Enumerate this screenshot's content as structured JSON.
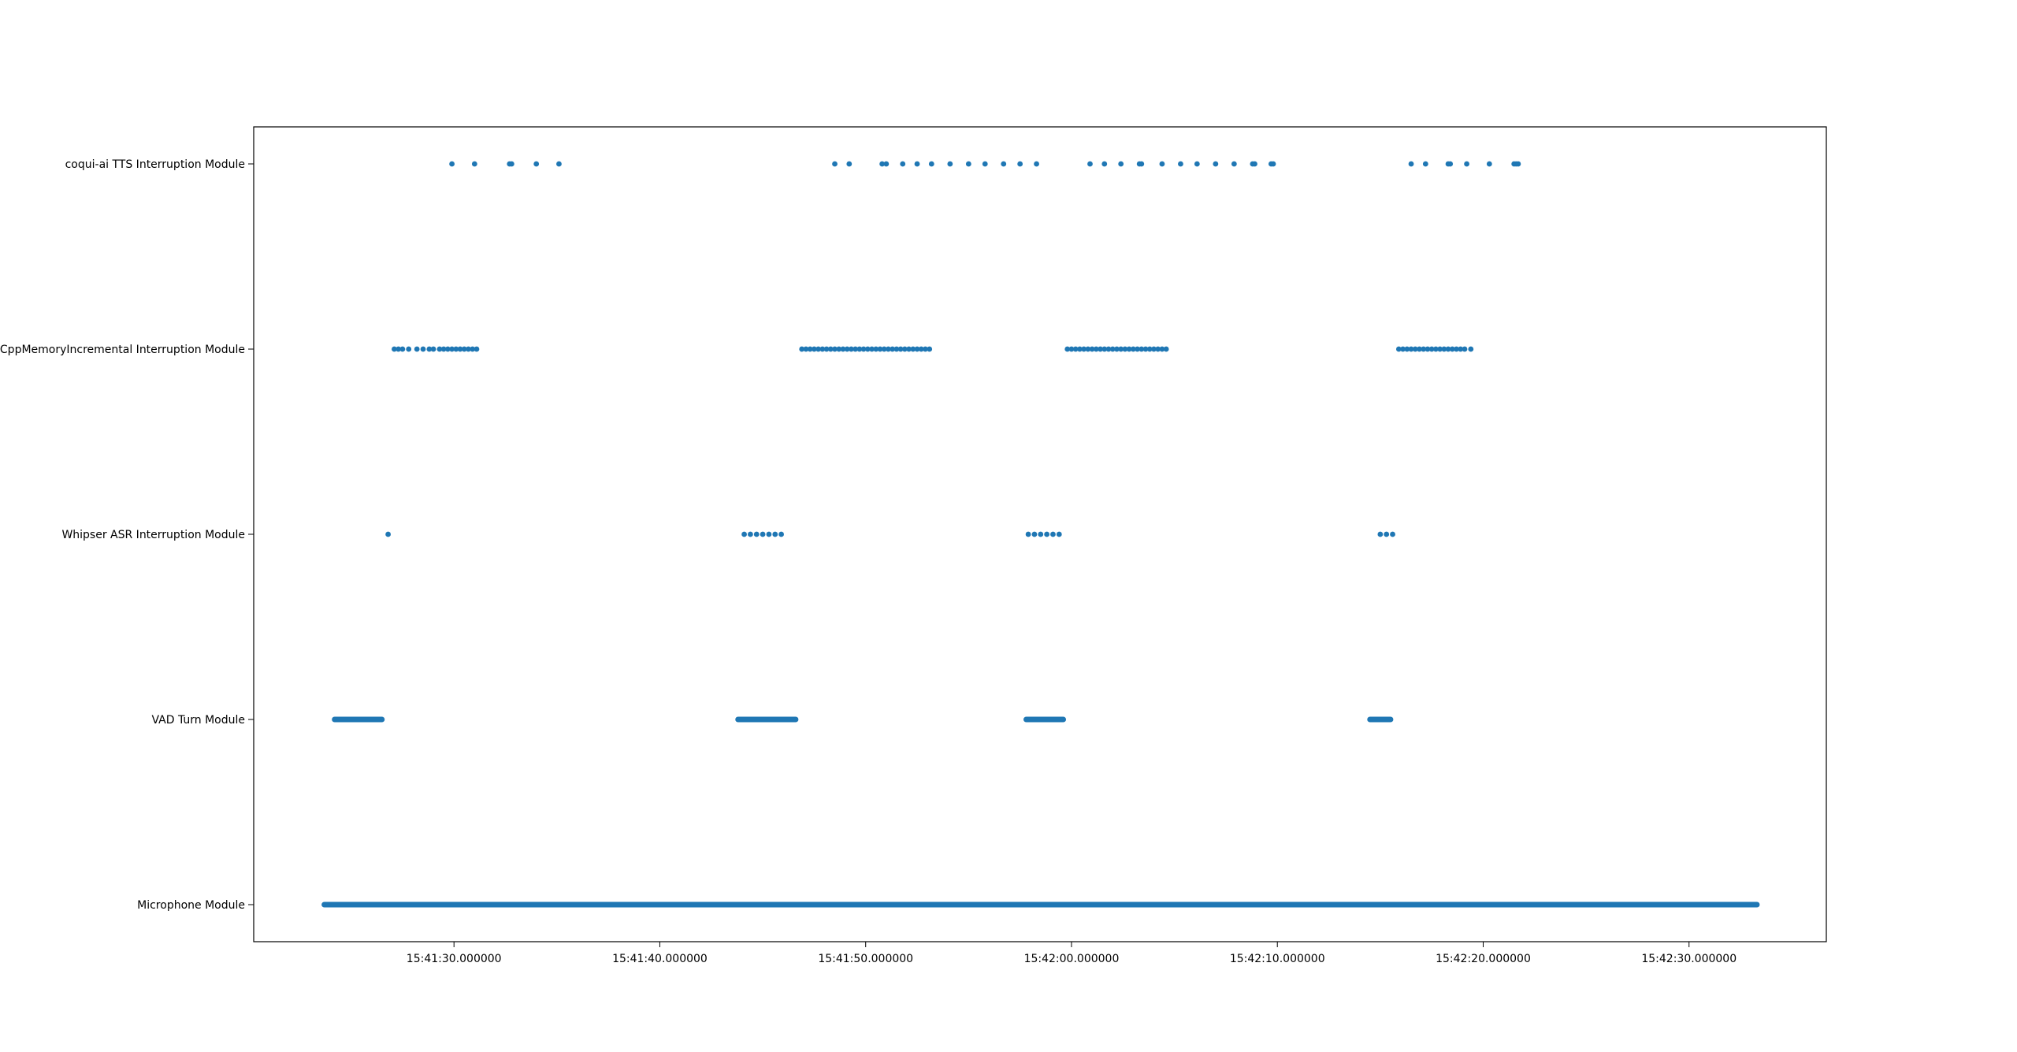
{
  "chart_data": {
    "type": "scatter",
    "title": "",
    "xlabel": "",
    "ylabel": "",
    "grid": false,
    "marker_color": "#1f77b4",
    "categories": [
      "Microphone Module",
      "VAD Turn Module",
      "Whipser ASR Interruption Module",
      "CppMemoryIncremental Interruption Module",
      "coqui-ai TTS Interruption Module"
    ],
    "x_ticks": [
      {
        "t": 29,
        "label": "15:41:30.000000"
      },
      {
        "t": 39,
        "label": "15:41:40.000000"
      },
      {
        "t": 49,
        "label": "15:41:50.000000"
      },
      {
        "t": 59,
        "label": "15:42:00.000000"
      },
      {
        "t": 69,
        "label": "15:42:10.000000"
      },
      {
        "t": 79,
        "label": "15:42:20.000000"
      },
      {
        "t": 89,
        "label": "15:42:30.000000"
      }
    ],
    "x_range": [
      19.27,
      95.67
    ],
    "x_unit": "seconds after 15:41:01",
    "series": [
      {
        "category": "Microphone Module",
        "segments": [
          [
            22.7,
            92.3
          ]
        ]
      },
      {
        "category": "VAD Turn Module",
        "segments": [
          [
            23.2,
            25.5
          ],
          [
            42.8,
            45.6
          ],
          [
            56.8,
            58.6
          ],
          [
            73.5,
            74.5
          ]
        ]
      },
      {
        "category": "Whipser ASR Interruption Module",
        "points": [
          25.8,
          43.1,
          43.4,
          43.7,
          44.0,
          44.3,
          44.6,
          44.9,
          56.9,
          57.2,
          57.5,
          57.8,
          58.1,
          58.4,
          74.0,
          74.3,
          74.6
        ]
      },
      {
        "category": "CppMemoryIncremental Interruption Module",
        "points": [
          26.1,
          26.3,
          26.5,
          26.8,
          27.2,
          27.5,
          27.8,
          28.0,
          28.3,
          28.5,
          28.7,
          28.9,
          29.1,
          29.3,
          29.5,
          29.7,
          29.9,
          30.1,
          45.9,
          46.1,
          46.3,
          46.5,
          46.7,
          46.9,
          47.1,
          47.3,
          47.5,
          47.7,
          47.9,
          48.1,
          48.3,
          48.5,
          48.7,
          48.9,
          49.1,
          49.3,
          49.5,
          49.7,
          49.9,
          50.1,
          50.3,
          50.5,
          50.7,
          50.9,
          51.1,
          51.3,
          51.5,
          51.7,
          51.9,
          52.1,
          58.8,
          59.0,
          59.2,
          59.4,
          59.6,
          59.8,
          60.0,
          60.2,
          60.4,
          60.6,
          60.8,
          61.0,
          61.2,
          61.4,
          61.6,
          61.8,
          62.0,
          62.2,
          62.4,
          62.6,
          62.8,
          63.0,
          63.2,
          63.4,
          63.6,
          74.9,
          75.1,
          75.3,
          75.5,
          75.7,
          75.9,
          76.1,
          76.3,
          76.5,
          76.7,
          76.9,
          77.1,
          77.3,
          77.5,
          77.7,
          77.9,
          78.1,
          78.4
        ]
      },
      {
        "category": "coqui-ai TTS Interruption Module",
        "points": [
          28.9,
          30.0,
          31.7,
          31.8,
          33.0,
          34.1,
          47.5,
          48.2,
          49.8,
          50.0,
          50.8,
          51.5,
          52.2,
          53.1,
          54.0,
          54.8,
          55.7,
          56.5,
          57.3,
          59.9,
          60.6,
          61.4,
          62.3,
          62.4,
          63.4,
          64.3,
          65.1,
          66.0,
          66.9,
          67.8,
          67.9,
          68.7,
          68.8,
          75.5,
          76.2,
          77.3,
          77.4,
          78.2,
          79.3,
          80.5,
          80.6,
          80.7
        ]
      }
    ]
  }
}
